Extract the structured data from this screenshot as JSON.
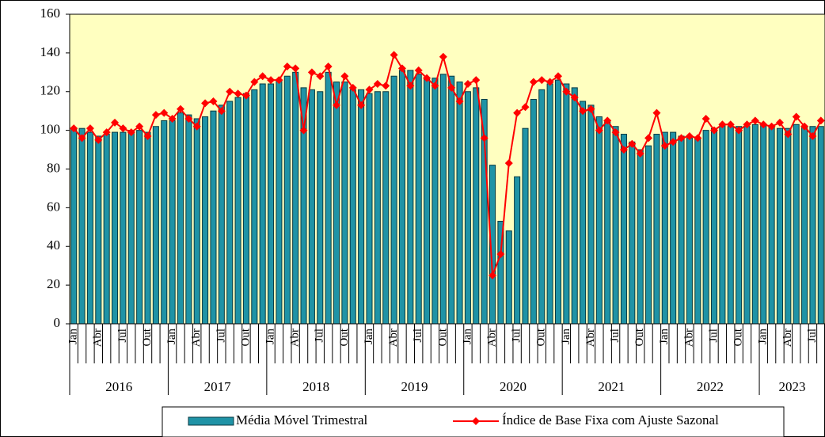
{
  "chart_data": {
    "type": "bar_line",
    "categories": [
      "Jan",
      null,
      null,
      "Abr",
      null,
      null,
      "Jul",
      null,
      null,
      "Out",
      null,
      null,
      "Jan",
      null,
      null,
      "Abr",
      null,
      null,
      "Jul",
      null,
      null,
      "Out",
      null,
      null,
      "Jan",
      null,
      null,
      "Abr",
      null,
      null,
      "Jul",
      null,
      null,
      "Out",
      null,
      null,
      "Jan",
      null,
      null,
      "Abr",
      null,
      null,
      "Jul",
      null,
      null,
      "Out",
      null,
      null,
      "Jan",
      null,
      null,
      "Abr",
      null,
      null,
      "Jul",
      null,
      null,
      "Out",
      null,
      null,
      "Jan",
      null,
      null,
      "Abr",
      null,
      null,
      "Jul",
      null,
      null,
      "Out",
      null,
      null,
      "Jan",
      null,
      null,
      "Abr",
      null,
      null,
      "Jul",
      null,
      null,
      "Out",
      null,
      null,
      "Jan",
      null,
      null,
      "Abr",
      null,
      null,
      "Jul",
      null
    ],
    "years": [
      "2016",
      "2017",
      "2018",
      "2019",
      "2020",
      "2021",
      "2022",
      "2023"
    ],
    "series": [
      {
        "name": "Média Móvel Trimestral",
        "kind": "bar",
        "color": "#1f93a6",
        "values": [
          101,
          101,
          99,
          97,
          98,
          99,
          99,
          100,
          100,
          99,
          102,
          105,
          105,
          109,
          108,
          106,
          107,
          110,
          113,
          115,
          117,
          119,
          121,
          124,
          124,
          126,
          128,
          130,
          122,
          121,
          120,
          130,
          125,
          125,
          121,
          121,
          119,
          120,
          120,
          128,
          131,
          131,
          129,
          127,
          127,
          129,
          128,
          125,
          120,
          122,
          116,
          82,
          53,
          48,
          76,
          101,
          116,
          121,
          124,
          126,
          124,
          122,
          115,
          113,
          107,
          105,
          102,
          98,
          94,
          90,
          92,
          98,
          99,
          99,
          97,
          96,
          96,
          100,
          101,
          103,
          102,
          102,
          102,
          103,
          103,
          102,
          101,
          101,
          103,
          102,
          102,
          102
        ]
      },
      {
        "name": "Índice de Base Fixa com Ajuste Sazonal",
        "kind": "line",
        "color": "#ff0000",
        "values": [
          101,
          96,
          101,
          95,
          99,
          104,
          101,
          99,
          102,
          97,
          108,
          109,
          106,
          111,
          106,
          102,
          114,
          115,
          110,
          120,
          119,
          118,
          125,
          128,
          126,
          126,
          133,
          132,
          100,
          130,
          128,
          133,
          113,
          128,
          122,
          113,
          121,
          124,
          123,
          139,
          132,
          123,
          131,
          127,
          123,
          138,
          122,
          115,
          124,
          126,
          96,
          25,
          36,
          83,
          109,
          112,
          125,
          126,
          125,
          128,
          120,
          117,
          110,
          111,
          100,
          105,
          99,
          90,
          93,
          88,
          96,
          109,
          92,
          94,
          96,
          97,
          96,
          106,
          100,
          103,
          103,
          100,
          103,
          105,
          103,
          102,
          104,
          98,
          107,
          102,
          97,
          105
        ]
      }
    ],
    "ylim": [
      0,
      160
    ],
    "yticks": [
      0,
      20,
      40,
      60,
      80,
      100,
      120,
      140,
      160
    ],
    "legend": "bottom",
    "plot_background": "#ffffc0"
  }
}
